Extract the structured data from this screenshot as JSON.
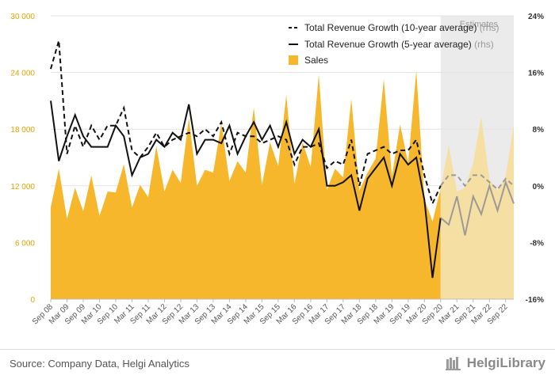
{
  "chart_data": {
    "type": "area",
    "categories": [
      "Sep 08",
      "Dec 08",
      "Mar 09",
      "Jun 09",
      "Sep 09",
      "Dec 09",
      "Mar 10",
      "Jun 10",
      "Sep 10",
      "Dec 10",
      "Mar 11",
      "Jun 11",
      "Sep 11",
      "Dec 11",
      "Mar 12",
      "Jun 12",
      "Sep 12",
      "Dec 12",
      "Mar 13",
      "Jun 13",
      "Sep 13",
      "Dec 13",
      "Mar 14",
      "Jun 14",
      "Sep 14",
      "Dec 14",
      "Mar 15",
      "Jun 15",
      "Sep 15",
      "Dec 15",
      "Mar 16",
      "Jun 16",
      "Sep 16",
      "Dec 16",
      "Mar 17",
      "Jun 17",
      "Sep 17",
      "Dec 17",
      "Mar 18",
      "Jun 18",
      "Sep 18",
      "Dec 18",
      "Mar 19",
      "Jun 19",
      "Sep 19",
      "Dec 19",
      "Mar 20",
      "Jun 20",
      "Sep 20",
      "Dec 20",
      "Mar 21",
      "Jun 21",
      "Sep 21",
      "Dec 21",
      "Mar 22",
      "Jun 22",
      "Sep 22",
      "Dec 22"
    ],
    "x_tick_labels": [
      "Sep 08",
      "Mar 09",
      "Sep 09",
      "Mar 10",
      "Sep 10",
      "Mar 11",
      "Sep 11",
      "Mar 12",
      "Sep 12",
      "Mar 13",
      "Sep 13",
      "Mar 14",
      "Sep 14",
      "Mar 15",
      "Sep 15",
      "Mar 16",
      "Sep 16",
      "Mar 17",
      "Sep 17",
      "Mar 18",
      "Sep 18",
      "Mar 19",
      "Sep 19",
      "Mar 20",
      "Sep 20",
      "Mar 21",
      "Sep 21",
      "Mar 22",
      "Sep 22"
    ],
    "estimates_label": "Estimates",
    "estimates_start": "Sep 20",
    "series": [
      {
        "name": "Sales",
        "axis": "left",
        "color": "#f6b72c",
        "values": [
          9700,
          13800,
          8500,
          11800,
          9300,
          13100,
          8800,
          11400,
          11300,
          14300,
          9700,
          12100,
          10800,
          16200,
          11400,
          13700,
          12300,
          19200,
          12000,
          13700,
          13400,
          18600,
          12500,
          14600,
          13400,
          20300,
          12100,
          16600,
          14100,
          21600,
          12200,
          16600,
          14000,
          23800,
          11600,
          13800,
          12900,
          21200,
          11500,
          13400,
          14900,
          23300,
          13000,
          18500,
          14400,
          24200,
          10600,
          8200,
          11700,
          16300,
          11400,
          11800,
          14400,
          19300,
          12700,
          11500,
          13000,
          18500
        ]
      },
      {
        "name": "Total Revenue Growth (10-year average)",
        "axis": "right",
        "unit": "%",
        "color": "#111111",
        "dashed": true,
        "values": [
          16.5,
          20.5,
          4.5,
          8.5,
          5.5,
          8.5,
          6.5,
          8.5,
          8.5,
          11.0,
          5.0,
          4.0,
          5.5,
          7.5,
          5.5,
          6.5,
          7.0,
          7.5,
          7.0,
          8.0,
          7.0,
          9.0,
          4.5,
          7.5,
          7.0,
          7.0,
          6.0,
          6.5,
          7.0,
          6.5,
          3.0,
          5.5,
          5.5,
          6.0,
          2.5,
          3.5,
          3.0,
          6.5,
          0.0,
          4.5,
          5.0,
          5.5,
          4.5,
          5.0,
          5.0,
          6.5,
          1.5,
          -2.5,
          0.0,
          1.5,
          1.5,
          0.0,
          1.5,
          1.5,
          0.5,
          -0.5,
          1.0,
          0.0
        ]
      },
      {
        "name": "Total Revenue Growth (5-year average)",
        "axis": "right",
        "unit": "%",
        "color": "#111111",
        "dashed": false,
        "values": [
          12.0,
          3.5,
          7.0,
          10.0,
          7.0,
          5.5,
          5.5,
          5.5,
          8.5,
          7.0,
          1.5,
          4.0,
          4.5,
          6.5,
          5.5,
          7.5,
          6.5,
          11.5,
          4.5,
          6.5,
          6.5,
          6.0,
          8.5,
          4.5,
          7.0,
          9.0,
          6.5,
          8.5,
          5.5,
          9.0,
          4.5,
          6.5,
          5.5,
          8.0,
          0.0,
          0.0,
          0.5,
          1.5,
          -3.5,
          1.0,
          2.5,
          4.0,
          0.0,
          4.5,
          3.0,
          4.0,
          -2.0,
          -13.0,
          -4.5,
          -5.5,
          -1.5,
          -7.0,
          -1.5,
          -4.0,
          0.0,
          -3.5,
          0.5,
          -2.5
        ]
      }
    ],
    "y_left": {
      "min": 0,
      "max": 30000,
      "ticks": [
        "0",
        "6 000",
        "12 000",
        "18 000",
        "24 000",
        "30 000"
      ]
    },
    "y_right": {
      "min": -16,
      "max": 24,
      "unit": "%",
      "ticks": [
        "-16%",
        "-8%",
        "0%",
        "8%",
        "16%",
        "24%"
      ]
    },
    "legend": {
      "placement": "top-right",
      "items": [
        {
          "label": "Total Revenue Growth (10-year average)",
          "suffix": "(rhs)",
          "marker": "dashed-line"
        },
        {
          "label": "Total Revenue Growth (5-year average)",
          "suffix": "(rhs)",
          "marker": "solid-line"
        },
        {
          "label": "Sales",
          "suffix": "",
          "marker": "square"
        }
      ]
    },
    "colors": {
      "sales": "#f6b72c",
      "sales_estimate": "#f5dfa2",
      "estimate_band": "#ebebeb",
      "line": "#111111",
      "line_estimate": "#9a9a9a",
      "left_axis": "#e6a100"
    },
    "grid": true
  },
  "footer": {
    "source": "Source: Company Data, Helgi Analytics",
    "brand": "HelgiLibrary"
  }
}
